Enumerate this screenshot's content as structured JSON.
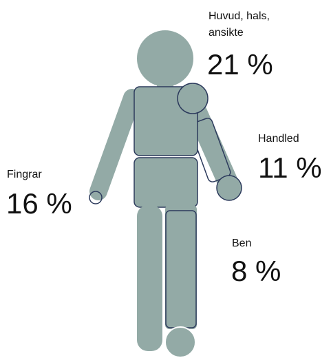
{
  "labels": [
    {
      "lines": [
        "Huvud, hals,",
        "ansikte"
      ],
      "value": "21 %"
    },
    {
      "lines": [
        "Handled"
      ],
      "value": "11 %"
    },
    {
      "lines": [
        "Fingrar"
      ],
      "value": "16 %"
    },
    {
      "lines": [
        "Ben"
      ],
      "value": "8 %"
    }
  ]
}
